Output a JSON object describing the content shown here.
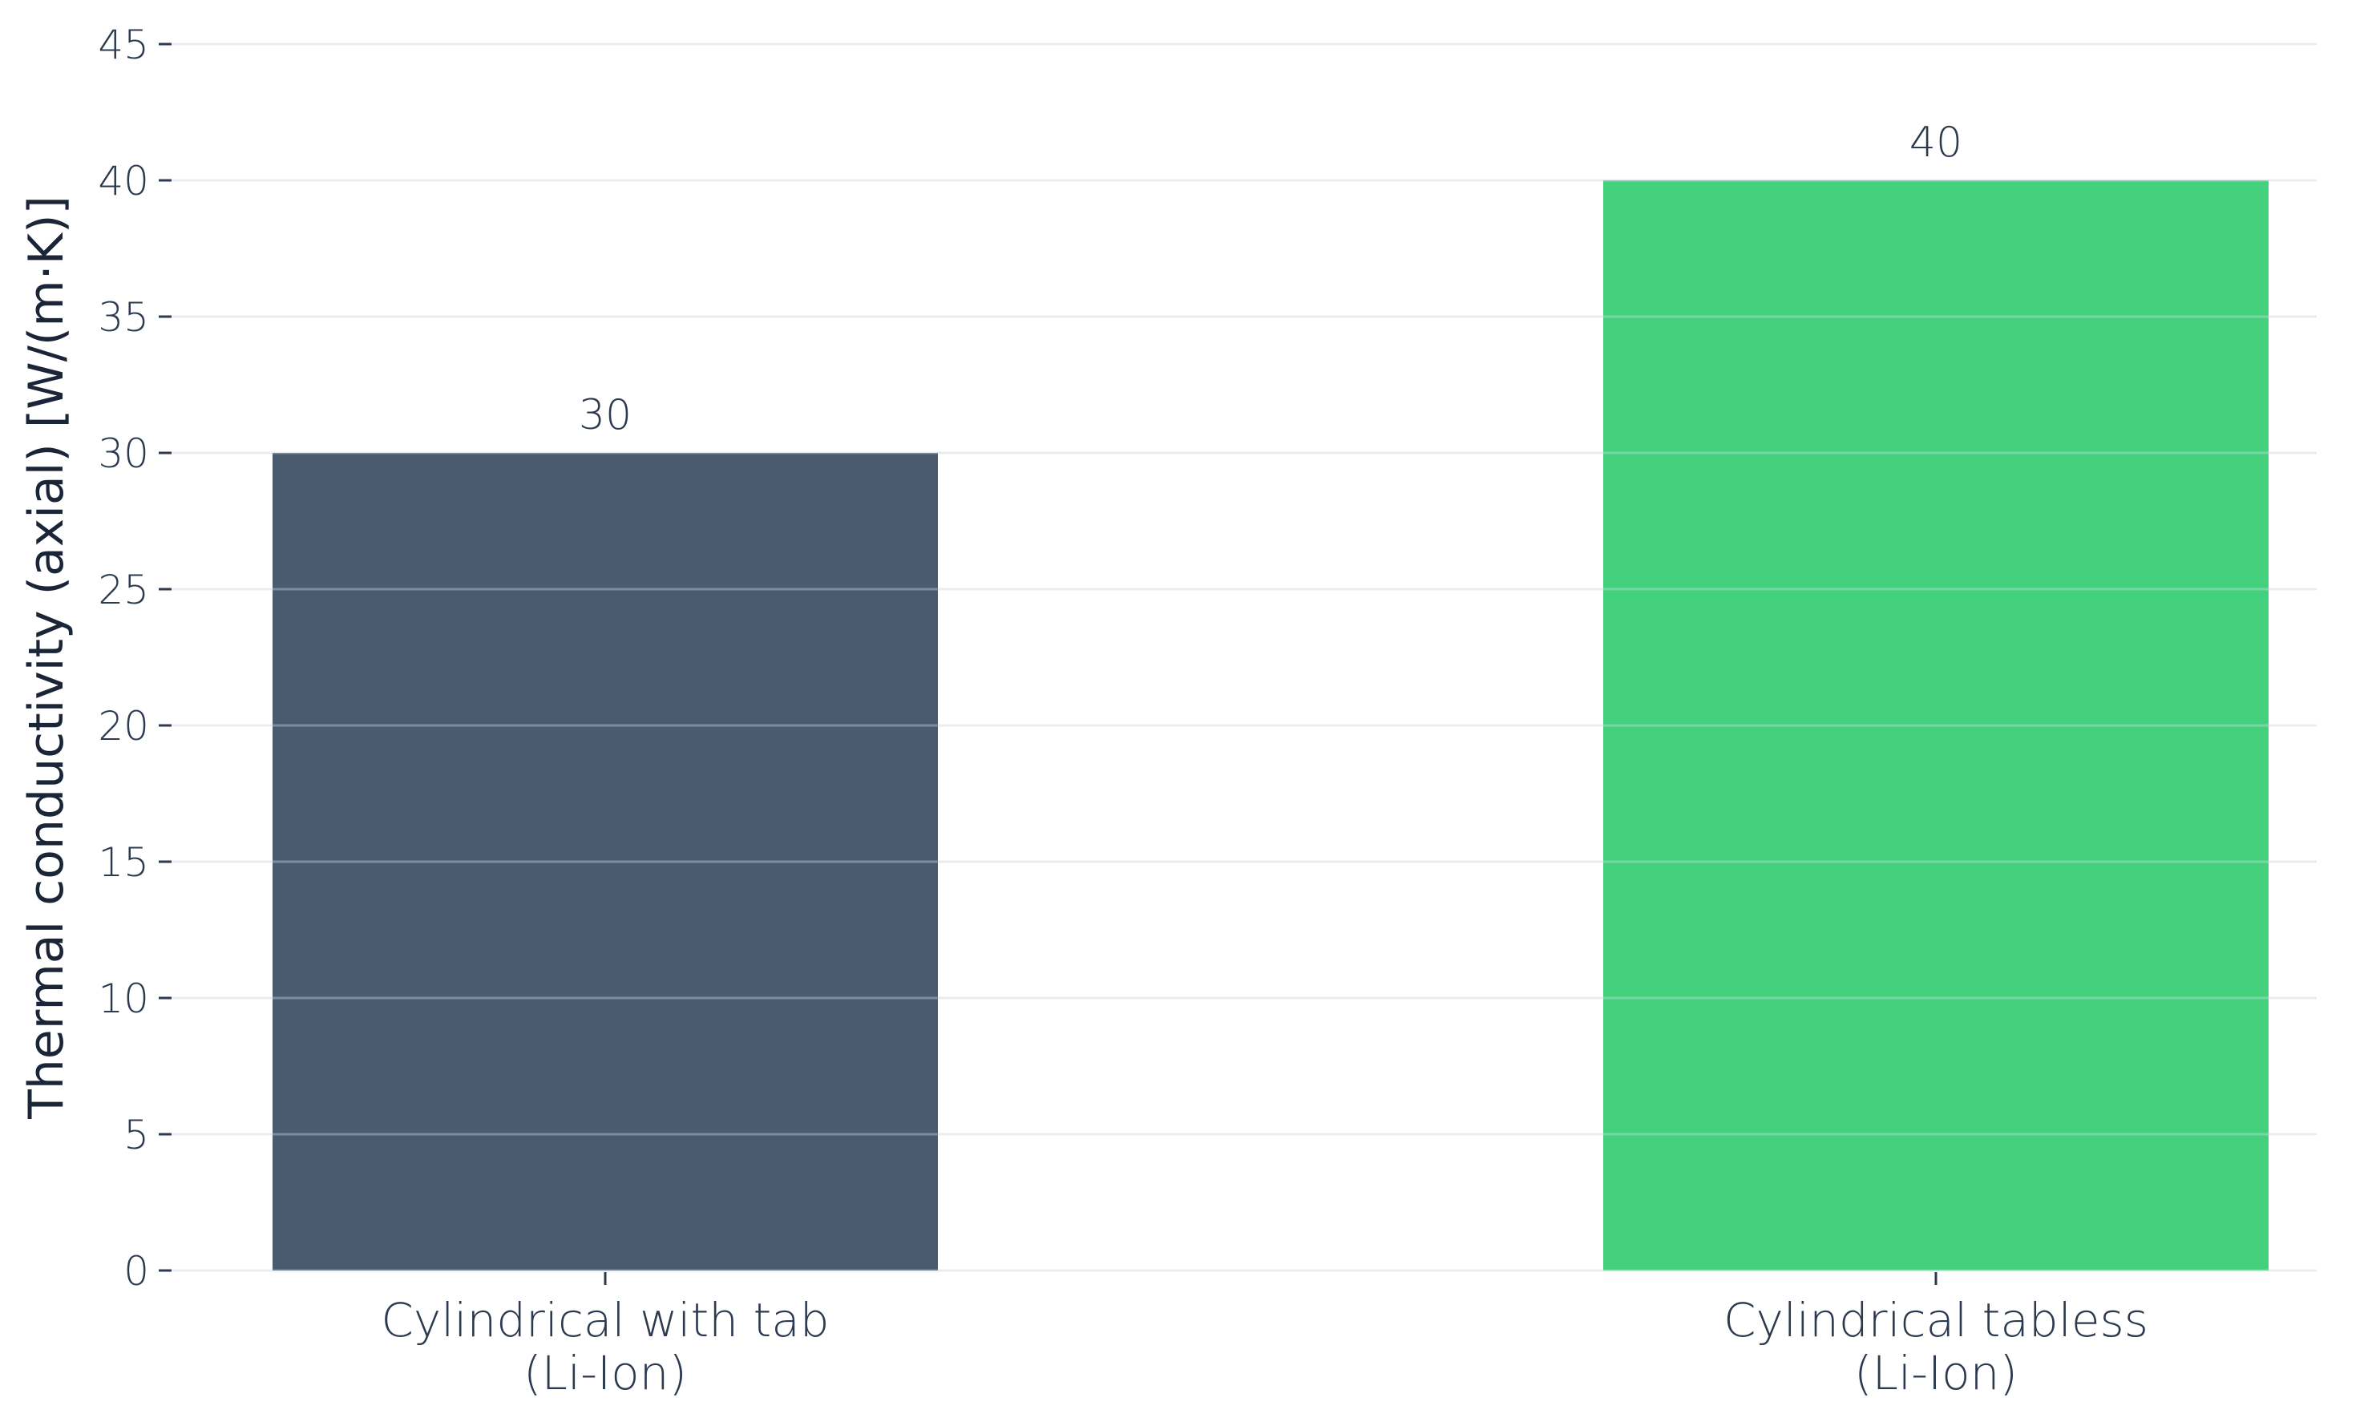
{
  "chart_data": {
    "type": "bar",
    "title": "",
    "xlabel": "",
    "ylabel": "Thermal conductivity (axial) [W/(m·K)]",
    "ylim": [
      0,
      45
    ],
    "yticks": [
      0,
      5,
      10,
      15,
      20,
      25,
      30,
      35,
      40,
      45
    ],
    "grid": true,
    "legend": "none",
    "categories": [
      [
        "Cylindrical with tab",
        "(Li-Ion)"
      ],
      [
        "Cylindrical tabless",
        "(Li-Ion)"
      ]
    ],
    "values": [
      30,
      40
    ],
    "value_labels": [
      "30",
      "40"
    ],
    "colors": [
      "#4a5b6f",
      "#43d17e"
    ],
    "text_color": "#2b3a4f",
    "grid_color": "#eef0f2"
  }
}
